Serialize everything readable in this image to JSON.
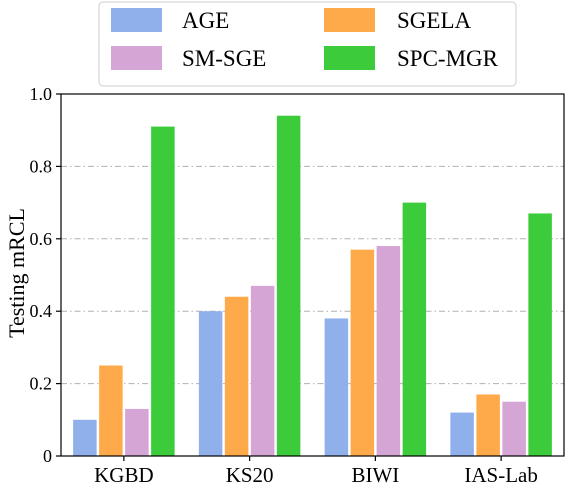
{
  "chart_data": {
    "type": "bar",
    "categories": [
      "KGBD",
      "KS20",
      "BIWI",
      "IAS-Lab"
    ],
    "series": [
      {
        "name": "AGE",
        "color": "#8fb0ea",
        "values": [
          0.1,
          0.4,
          0.38,
          0.12
        ]
      },
      {
        "name": "SGELA",
        "color": "#ffaa4a",
        "values": [
          0.25,
          0.44,
          0.57,
          0.17
        ]
      },
      {
        "name": "SM-SGE",
        "color": "#d5a5d5",
        "values": [
          0.13,
          0.47,
          0.58,
          0.15
        ]
      },
      {
        "name": "SPC-MGR",
        "color": "#3bcb3b",
        "values": [
          0.91,
          0.94,
          0.7,
          0.67
        ]
      }
    ],
    "ylabel": "Testing mRCL",
    "xlabel": "",
    "ylim": [
      0,
      1.0
    ],
    "yticks": [
      "0",
      "0.2",
      "0.4",
      "0.6",
      "0.8",
      "1.0"
    ],
    "grid": "horizontal dash-dot",
    "legend_position": "top",
    "legend_columns": 2
  }
}
